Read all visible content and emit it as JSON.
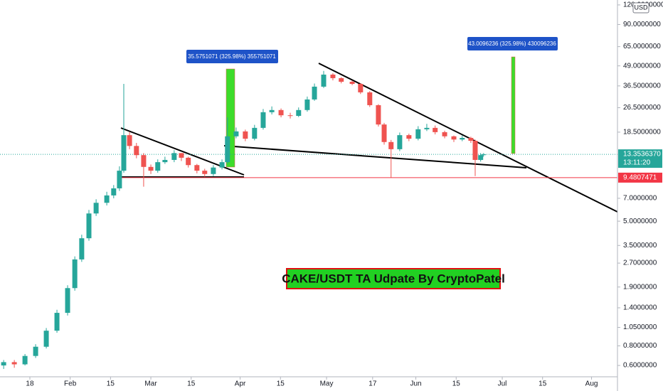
{
  "chart_data": {
    "type": "candlestick",
    "log_scale": true,
    "x": [
      8.9,
      12.6,
      16.3,
      20,
      23.7,
      27.4,
      31.1,
      33.6,
      36,
      38.5,
      41,
      44.7,
      47.1,
      49.1,
      50.6,
      52.6,
      55,
      57.5,
      60,
      62.4,
      64.9,
      68.1,
      70.6,
      73,
      76,
      78.7,
      81.7,
      84.7,
      86.6,
      89.6,
      92.8,
      96,
      99,
      102,
      105.2,
      108.4,
      111.3,
      114.3,
      116.8,
      120,
      123.2,
      126.1,
      129.9,
      132.8,
      136,
      139,
      141,
      143.4,
      146.4,
      149.6,
      152.8,
      155.8,
      158.7,
      162,
      165.2,
      168.1,
      171.1,
      172.6,
      174.5,
      175.5
    ],
    "open": [
      0.6,
      0.63,
      0.61,
      0.69,
      0.79,
      1.0,
      1.3,
      1.87,
      2.85,
      3.89,
      5.6,
      6.55,
      7.3,
      8.1,
      10.5,
      17.7,
      15.1,
      13.2,
      11.1,
      10.5,
      11.9,
      12.3,
      13.6,
      12.7,
      11.4,
      10.5,
      10.0,
      11.0,
      11.9,
      17.4,
      18.7,
      16.8,
      19.7,
      24.8,
      25.6,
      23.7,
      23.5,
      25.6,
      29.9,
      36.1,
      43.1,
      40.9,
      38.8,
      37.6,
      33.2,
      27.5,
      20.7,
      16.0,
      14.4,
      17.7,
      16.8,
      19.3,
      19.7,
      18.5,
      17.4,
      16.6,
      17.0,
      16.3,
      12.3,
      13.2
    ],
    "high": [
      0.65,
      0.65,
      0.71,
      0.82,
      1.04,
      1.36,
      1.95,
      2.98,
      4.1,
      5.9,
      6.9,
      7.7,
      8.5,
      11.2,
      37.6,
      18.5,
      15.8,
      13.6,
      11.5,
      12.4,
      12.9,
      14.2,
      13.6,
      12.9,
      11.6,
      10.8,
      11.4,
      12.4,
      23.0,
      19.8,
      19.2,
      20.6,
      26.0,
      27.0,
      26.2,
      24.6,
      26.6,
      31.2,
      37.8,
      45.5,
      44.0,
      41.5,
      39.5,
      38.0,
      33.8,
      27.9,
      21.2,
      16.5,
      18.4,
      18.1,
      20.2,
      20.9,
      20.4,
      18.9,
      17.6,
      17.6,
      17.3,
      16.6,
      13.6,
      13.6
    ],
    "low": [
      0.57,
      0.58,
      0.6,
      0.67,
      0.77,
      0.97,
      1.25,
      1.8,
      2.75,
      3.75,
      5.4,
      6.3,
      7.0,
      7.8,
      10.2,
      14.4,
      12.6,
      8.3,
      10.0,
      10.2,
      11.6,
      11.9,
      12.1,
      11.0,
      10.1,
      9.6,
      9.7,
      10.7,
      11.6,
      16.9,
      16.2,
      16.4,
      19.2,
      24.0,
      23.0,
      22.6,
      23.1,
      25.0,
      29.3,
      35.4,
      39.6,
      37.9,
      36.9,
      32.4,
      26.8,
      20.1,
      15.4,
      9.5,
      14.0,
      16.2,
      16.4,
      18.8,
      17.9,
      16.9,
      16.0,
      16.2,
      15.8,
      9.7,
      12.0,
      12.9
    ],
    "close": [
      0.63,
      0.61,
      0.69,
      0.79,
      1.0,
      1.3,
      1.87,
      2.85,
      3.89,
      5.6,
      6.55,
      7.3,
      8.1,
      10.5,
      17.7,
      15.1,
      13.2,
      11.1,
      10.5,
      11.9,
      12.3,
      13.6,
      12.7,
      11.4,
      10.5,
      10.0,
      11.0,
      11.9,
      17.4,
      18.7,
      16.8,
      19.7,
      24.8,
      25.6,
      23.7,
      23.5,
      25.6,
      29.9,
      36.1,
      43.1,
      40.9,
      38.8,
      37.6,
      33.2,
      27.5,
      20.7,
      16.0,
      14.4,
      17.7,
      16.8,
      19.3,
      19.7,
      18.5,
      17.4,
      16.6,
      17.0,
      16.3,
      12.3,
      13.2,
      13.35
    ],
    "up_color": "#26a69a",
    "down_color": "#ef5350",
    "xlim": [
      7.63,
      222
    ],
    "ylim": [
      0.508,
      129
    ],
    "xticks": [
      {
        "value": 18,
        "label": "18"
      },
      {
        "value": 32,
        "label": "Feb"
      },
      {
        "value": 46,
        "label": "15"
      },
      {
        "value": 60,
        "label": "Mar"
      },
      {
        "value": 74,
        "label": "15"
      },
      {
        "value": 91,
        "label": "Apr"
      },
      {
        "value": 105,
        "label": "15"
      },
      {
        "value": 121,
        "label": "May"
      },
      {
        "value": 137,
        "label": "17"
      },
      {
        "value": 152,
        "label": "Jun"
      },
      {
        "value": 166,
        "label": "15"
      },
      {
        "value": 182,
        "label": "Jul"
      },
      {
        "value": 196,
        "label": "15"
      },
      {
        "value": 213,
        "label": "Aug"
      }
    ],
    "yticks": [
      {
        "value": 0.6,
        "label": "0.6000000"
      },
      {
        "value": 0.8,
        "label": "0.8000000"
      },
      {
        "value": 1.05,
        "label": "1.0500000"
      },
      {
        "value": 1.4,
        "label": "1.4000000"
      },
      {
        "value": 1.9,
        "label": "1.9000000"
      },
      {
        "value": 2.7,
        "label": "2.7000000"
      },
      {
        "value": 3.5,
        "label": "3.5000000"
      },
      {
        "value": 5,
        "label": "5.0000000"
      },
      {
        "value": 7,
        "label": "7.0000000"
      },
      {
        "value": 18.5,
        "label": "18.5000000"
      },
      {
        "value": 26.5,
        "label": "26.5000000"
      },
      {
        "value": 36.5,
        "label": "36.5000000"
      },
      {
        "value": 49,
        "label": "49.0000000"
      },
      {
        "value": 65,
        "label": "65.0000000"
      },
      {
        "value": 90,
        "label": "90.0000000"
      },
      {
        "value": 120,
        "label": "120.0000000"
      }
    ],
    "currency": "USD",
    "last_price": {
      "value": 13.353637,
      "label": "13.3536370"
    },
    "countdown": "13:11:20",
    "level": 9.4807471,
    "level_color": "#f23645",
    "annotations": [
      "35.5751071 (325.98%) 355751071",
      "43.0096236 (325.98%) 430096236"
    ],
    "title": "CAKE/USDT TA Udpate By CryptoPatel"
  }
}
